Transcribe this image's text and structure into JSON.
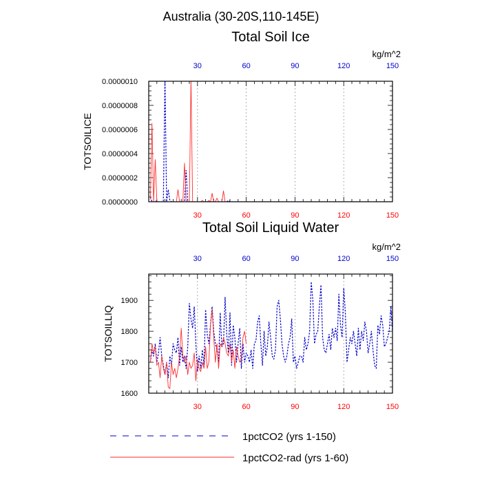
{
  "header": {
    "region": "Australia (30-20S,110-145E)"
  },
  "colors": {
    "series_1": "#0000cc",
    "series_2": "#ff2a2a",
    "top_tick_labels": "#0000cc",
    "bottom_tick_labels": "#ff0000",
    "grid": "#999999"
  },
  "legend": {
    "placement": "bottom",
    "items": [
      {
        "label": "1pctCO2 (yrs 1-150)",
        "style": "dashed",
        "color": "#0000cc"
      },
      {
        "label": "1pctCO2-rad (yrs 1-60)",
        "style": "solid",
        "color": "#ff2a2a"
      }
    ]
  },
  "chart_data": [
    {
      "type": "line",
      "title": "Total Soil Ice",
      "ylabel": "TOTSOILICE",
      "units": "kg/m^2",
      "xlim": [
        0,
        150
      ],
      "ylim": [
        0,
        1e-06
      ],
      "x_ticks": [
        "30",
        "60",
        "90",
        "120",
        "150"
      ],
      "y_ticks": [
        "0.0000000",
        "0.0000002",
        "0.0000004",
        "0.0000006",
        "0.0000008",
        "0.0000010"
      ],
      "grid": "vertical dashed at x ticks",
      "series": [
        {
          "name": "1pctCO2 (yrs 1-150)",
          "style": "dashed",
          "x": [
            1,
            2,
            3,
            4,
            5,
            6,
            7,
            8,
            9,
            10,
            11,
            12,
            13,
            14,
            15,
            16,
            17,
            18,
            19,
            20,
            21,
            22,
            23,
            24,
            25,
            26,
            27,
            28,
            29,
            30,
            31,
            32,
            33,
            34,
            35,
            36,
            37,
            38,
            39,
            40,
            41,
            42,
            43,
            44,
            45,
            46,
            47,
            48,
            49,
            50,
            51,
            52,
            53,
            54,
            55,
            56,
            57,
            58,
            59,
            60,
            61,
            62,
            63,
            64,
            65,
            66,
            67,
            68,
            69,
            70,
            71,
            72,
            73,
            74,
            75,
            76,
            77,
            78,
            79,
            80,
            81,
            82,
            83,
            84,
            85,
            86,
            87,
            88,
            89,
            90,
            91,
            92,
            93,
            94,
            95,
            96,
            97,
            98,
            99,
            100,
            101,
            102,
            103,
            104,
            105,
            106,
            107,
            108,
            109,
            110,
            111,
            112,
            113,
            114,
            115,
            116,
            117,
            118,
            119,
            120,
            121,
            122,
            123,
            124,
            125,
            126,
            127,
            128,
            129,
            130,
            131,
            132,
            133,
            134,
            135,
            136,
            137,
            138,
            139,
            140,
            141,
            142,
            143,
            144,
            145,
            146,
            147,
            148,
            149,
            150
          ],
          "values": [
            4e-08,
            0,
            0,
            0,
            1e-08,
            0,
            0,
            0,
            0,
            1.02e-06,
            0,
            1e-07,
            1e-08,
            0,
            0,
            0,
            0,
            0,
            0,
            0,
            0,
            0,
            2.6e-07,
            0,
            0,
            0,
            0,
            0,
            0,
            0,
            0,
            0,
            0,
            0,
            0,
            0,
            0,
            0,
            0,
            0,
            0,
            0,
            0,
            0,
            0,
            0,
            0,
            0,
            1e-08,
            0,
            0,
            0,
            0,
            0,
            0,
            0,
            0,
            0,
            0,
            0,
            0,
            0,
            0,
            0,
            0,
            0,
            0,
            0,
            0,
            0,
            0,
            0,
            0,
            0,
            0,
            0,
            0,
            0,
            0,
            0,
            0,
            0,
            0,
            0,
            0,
            0,
            0,
            0,
            0,
            0,
            0,
            0,
            0,
            0,
            0,
            0,
            0,
            0,
            0,
            0,
            0,
            0,
            0,
            0,
            0,
            0,
            0,
            0,
            0,
            0,
            0,
            0,
            0,
            0,
            0,
            0,
            0,
            0,
            0,
            0,
            0,
            0,
            0,
            0,
            0,
            0,
            0,
            0,
            0,
            0,
            0,
            0,
            0,
            0,
            0,
            0,
            0,
            0,
            0,
            0,
            0,
            0,
            0,
            0,
            0,
            0,
            0,
            0,
            0,
            0
          ]
        },
        {
          "name": "1pctCO2-rad (yrs 1-60)",
          "style": "solid",
          "x": [
            1,
            2,
            3,
            4,
            5,
            6,
            7,
            8,
            9,
            10,
            11,
            12,
            13,
            14,
            15,
            16,
            17,
            18,
            19,
            20,
            21,
            22,
            23,
            24,
            25,
            26,
            27,
            28,
            29,
            30,
            31,
            32,
            33,
            34,
            35,
            36,
            37,
            38,
            39,
            40,
            41,
            42,
            43,
            44,
            45,
            46,
            47,
            48,
            49,
            50,
            51,
            52,
            53,
            54,
            55,
            56,
            57,
            58,
            59,
            60
          ],
          "values": [
            2e-08,
            6.5e-07,
            0,
            3.5e-07,
            0,
            0,
            0,
            0,
            0,
            0,
            0,
            0,
            0,
            0,
            0,
            0,
            0,
            1e-07,
            0,
            0,
            0,
            3.2e-07,
            1e-08,
            0,
            0,
            1.02e-06,
            0,
            0,
            0,
            0,
            0,
            0,
            1e-08,
            0,
            0,
            0,
            1e-08,
            0,
            7e-08,
            0,
            0,
            3e-08,
            0,
            0,
            0,
            9e-08,
            0,
            0,
            0,
            0,
            0,
            0,
            0,
            0,
            0,
            0,
            0,
            0,
            0,
            0
          ]
        }
      ]
    },
    {
      "type": "line",
      "title": "Total Soil Liquid Water",
      "ylabel": "TOTSOILLIQ",
      "units": "kg/m^2",
      "xlim": [
        0,
        150
      ],
      "ylim": [
        1600,
        1985
      ],
      "x_ticks": [
        "30",
        "60",
        "90",
        "120",
        "150"
      ],
      "y_ticks": [
        "1600",
        "1700",
        "1800",
        "1900"
      ],
      "grid": "vertical dashed at x ticks",
      "series": [
        {
          "name": "1pctCO2 (yrs 1-150)",
          "style": "dashed",
          "x": [
            1,
            2,
            3,
            4,
            5,
            6,
            7,
            8,
            9,
            10,
            11,
            12,
            13,
            14,
            15,
            16,
            17,
            18,
            19,
            20,
            21,
            22,
            23,
            24,
            25,
            26,
            27,
            28,
            29,
            30,
            31,
            32,
            33,
            34,
            35,
            36,
            37,
            38,
            39,
            40,
            41,
            42,
            43,
            44,
            45,
            46,
            47,
            48,
            49,
            50,
            51,
            52,
            53,
            54,
            55,
            56,
            57,
            58,
            59,
            60,
            61,
            62,
            63,
            64,
            65,
            66,
            67,
            68,
            69,
            70,
            71,
            72,
            73,
            74,
            75,
            76,
            77,
            78,
            79,
            80,
            81,
            82,
            83,
            84,
            85,
            86,
            87,
            88,
            89,
            90,
            91,
            92,
            93,
            94,
            95,
            96,
            97,
            98,
            99,
            100,
            101,
            102,
            103,
            104,
            105,
            106,
            107,
            108,
            109,
            110,
            111,
            112,
            113,
            114,
            115,
            116,
            117,
            118,
            119,
            120,
            121,
            122,
            123,
            124,
            125,
            126,
            127,
            128,
            129,
            130,
            131,
            132,
            133,
            134,
            135,
            136,
            137,
            138,
            139,
            140,
            141,
            142,
            143,
            144,
            145,
            146,
            147,
            148,
            149,
            150
          ],
          "values": [
            1700,
            1740,
            1720,
            1760,
            1700,
            1730,
            1780,
            1720,
            1690,
            1660,
            1700,
            1650,
            1720,
            1690,
            1760,
            1740,
            1730,
            1780,
            1690,
            1750,
            1700,
            1720,
            1680,
            1750,
            1890,
            1840,
            1810,
            1880,
            1760,
            1670,
            1720,
            1680,
            1740,
            1690,
            1870,
            1790,
            1760,
            1820,
            1880,
            1800,
            1760,
            1740,
            1700,
            1860,
            1750,
            1760,
            1910,
            1790,
            1730,
            1860,
            1690,
            1820,
            1780,
            1700,
            1760,
            1810,
            1680,
            1760,
            1700,
            1730,
            1720,
            1700,
            1740,
            1680,
            1760,
            1770,
            1830,
            1850,
            1760,
            1690,
            1800,
            1720,
            1750,
            1830,
            1780,
            1720,
            1710,
            1740,
            1880,
            1900,
            1840,
            1760,
            1720,
            1700,
            1720,
            1760,
            1780,
            1840,
            1700,
            1720,
            1680,
            1700,
            1720,
            1720,
            1700,
            1780,
            1740,
            1760,
            1800,
            1960,
            1900,
            1760,
            1790,
            1800,
            1880,
            1950,
            1780,
            1740,
            1730,
            1760,
            1790,
            1740,
            1810,
            1780,
            1810,
            1770,
            1920,
            1820,
            1780,
            1940,
            1860,
            1700,
            1740,
            1780,
            1760,
            1800,
            1760,
            1720,
            1810,
            1740,
            1800,
            1770,
            1830,
            1800,
            1730,
            1760,
            1800,
            1740,
            1690,
            1680,
            1820,
            1790,
            1850,
            1820,
            1750,
            1760,
            1780,
            1800,
            1880,
            1800
          ]
        },
        {
          "name": "1pctCO2-rad (yrs 1-60)",
          "style": "solid",
          "x": [
            1,
            2,
            3,
            4,
            5,
            6,
            7,
            8,
            9,
            10,
            11,
            12,
            13,
            14,
            15,
            16,
            17,
            18,
            19,
            20,
            21,
            22,
            23,
            24,
            25,
            26,
            27,
            28,
            29,
            30,
            31,
            32,
            33,
            34,
            35,
            36,
            37,
            38,
            39,
            40,
            41,
            42,
            43,
            44,
            45,
            46,
            47,
            48,
            49,
            50,
            51,
            52,
            53,
            54,
            55,
            56,
            57,
            58,
            59,
            60
          ],
          "values": [
            1700,
            1760,
            1730,
            1750,
            1690,
            1700,
            1650,
            1720,
            1680,
            1660,
            1700,
            1620,
            1615,
            1700,
            1660,
            1680,
            1650,
            1680,
            1720,
            1810,
            1720,
            1700,
            1720,
            1660,
            1700,
            1680,
            1690,
            1730,
            1640,
            1710,
            1680,
            1670,
            1700,
            1680,
            1750,
            1680,
            1700,
            1820,
            1870,
            1780,
            1700,
            1760,
            1680,
            1760,
            1750,
            1780,
            1760,
            1730,
            1720,
            1760,
            1700,
            1740,
            1680,
            1750,
            1720,
            1700,
            1710,
            1780,
            1800,
            1760
          ]
        }
      ]
    }
  ]
}
